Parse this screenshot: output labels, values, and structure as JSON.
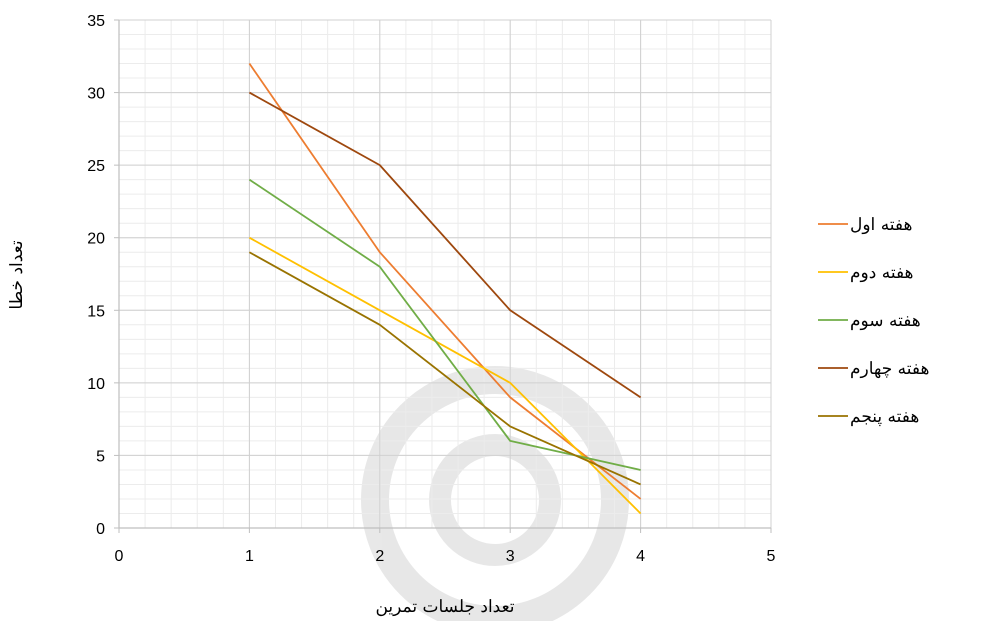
{
  "chart_data": {
    "type": "line",
    "title": "",
    "xlabel": "تعداد جلسات تمرین",
    "ylabel": "تعداد خطا",
    "xlim": [
      0,
      5
    ],
    "ylim": [
      0,
      35
    ],
    "x_ticks": [
      "0",
      "1",
      "2",
      "3",
      "4",
      "5"
    ],
    "y_ticks": [
      "0",
      "5",
      "10",
      "15",
      "20",
      "25",
      "30",
      "35"
    ],
    "grid": true,
    "legend_position": "right",
    "x": [
      1,
      2,
      3,
      4
    ],
    "series": [
      {
        "name": "هفته اول",
        "color": "#ED7D31",
        "values": [
          32,
          19,
          9,
          2
        ]
      },
      {
        "name": "هفته دوم",
        "color": "#FFC000",
        "values": [
          20,
          15,
          10,
          1
        ]
      },
      {
        "name": "هفته سوم",
        "color": "#70AD47",
        "values": [
          24,
          18,
          6,
          4
        ]
      },
      {
        "name": "هفته چهارم",
        "color": "#9E480E",
        "values": [
          30,
          25,
          15,
          9
        ]
      },
      {
        "name": "هفته پنجم",
        "color": "#997300",
        "values": [
          19,
          14,
          7,
          3
        ]
      }
    ]
  }
}
